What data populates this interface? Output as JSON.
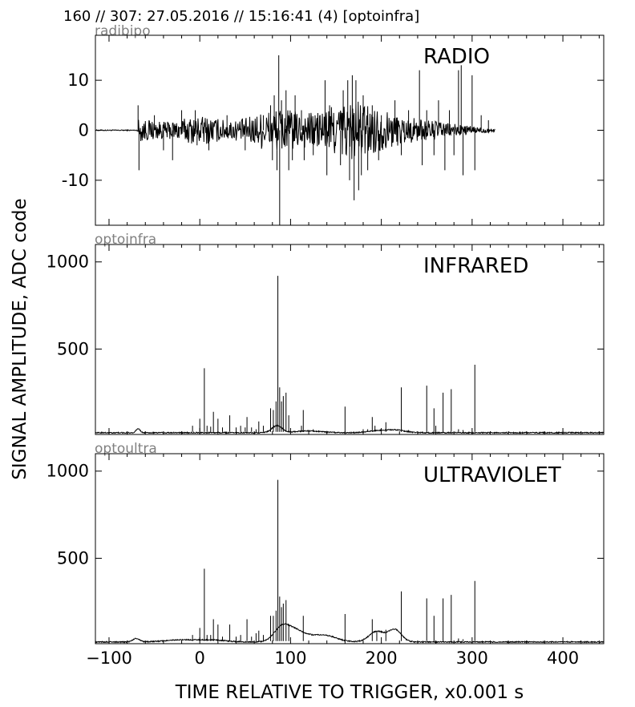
{
  "header": {
    "title": "160 // 307:   27.05.2016 // 15:16:41 (4)  [optoinfra]"
  },
  "chart_data": {
    "type": "line",
    "xlabel": "TIME RELATIVE TO TRIGGER,   x0.001 s",
    "ylabel": "SIGNAL AMPLITUDE,  ADC code",
    "xlim": [
      -115,
      445
    ],
    "xticks": [
      -100,
      0,
      100,
      200,
      300,
      400
    ],
    "xtick_labels": [
      "−100",
      "0",
      "100",
      "200",
      "300",
      "400"
    ],
    "grid": false,
    "line_color": "#000000",
    "panels": [
      {
        "id": "radio",
        "source": "radibipo",
        "label": "RADIO",
        "ylim": [
          -19,
          19
        ],
        "yticks": [
          10,
          0,
          -10
        ],
        "ytick_labels": [
          "10",
          "0",
          "-10"
        ],
        "baseline": 0,
        "signal_range": [
          -115,
          325
        ],
        "bursts": [
          {
            "x": -70,
            "width": 30,
            "amp": 2.0
          },
          {
            "x": 0,
            "width": 35,
            "amp": 2.5
          },
          {
            "x": 85,
            "width": 40,
            "amp": 4.0
          },
          {
            "x": 165,
            "width": 40,
            "amp": 5.0
          },
          {
            "x": 230,
            "width": 60,
            "amp": 2.0
          }
        ],
        "spikes": [
          [
            -68,
            5
          ],
          [
            -67,
            -8
          ],
          [
            -50,
            3
          ],
          [
            -40,
            -4
          ],
          [
            -30,
            -6
          ],
          [
            -20,
            4
          ],
          [
            -5,
            4
          ],
          [
            -3,
            -3
          ],
          [
            10,
            -4
          ],
          [
            30,
            3
          ],
          [
            50,
            -4
          ],
          [
            70,
            3
          ],
          [
            78,
            5
          ],
          [
            80,
            -6
          ],
          [
            82,
            7
          ],
          [
            85,
            -8
          ],
          [
            87,
            15
          ],
          [
            88,
            -19
          ],
          [
            90,
            6
          ],
          [
            95,
            8
          ],
          [
            98,
            -8
          ],
          [
            102,
            -6
          ],
          [
            105,
            7
          ],
          [
            112,
            4
          ],
          [
            115,
            -6
          ],
          [
            125,
            -5
          ],
          [
            138,
            10
          ],
          [
            140,
            -9
          ],
          [
            143,
            5
          ],
          [
            155,
            -7
          ],
          [
            158,
            8
          ],
          [
            163,
            10
          ],
          [
            165,
            -10
          ],
          [
            168,
            11
          ],
          [
            170,
            -14
          ],
          [
            172,
            10
          ],
          [
            175,
            -12
          ],
          [
            178,
            -9
          ],
          [
            180,
            7
          ],
          [
            185,
            -8
          ],
          [
            190,
            5
          ],
          [
            197,
            -6
          ],
          [
            200,
            3
          ],
          [
            215,
            6
          ],
          [
            222,
            -5
          ],
          [
            230,
            4
          ],
          [
            242,
            12
          ],
          [
            245,
            -7
          ],
          [
            250,
            4
          ],
          [
            258,
            -5
          ],
          [
            263,
            6
          ],
          [
            270,
            -8
          ],
          [
            275,
            4
          ],
          [
            280,
            -5
          ],
          [
            285,
            12
          ],
          [
            288,
            13
          ],
          [
            290,
            -9
          ],
          [
            300,
            11
          ],
          [
            303,
            -8
          ],
          [
            310,
            3
          ],
          [
            318,
            2
          ]
        ]
      },
      {
        "id": "infrared",
        "source": "optoinfra",
        "label": "INFRARED",
        "ylim": [
          10,
          1100
        ],
        "yticks": [
          500,
          1000
        ],
        "ytick_labels": [
          "500",
          "1000"
        ],
        "baseline": 20,
        "humps": [
          {
            "x": -68,
            "width": 3,
            "height": 25
          },
          {
            "x": 85,
            "width": 8,
            "height": 40
          },
          {
            "x": 120,
            "width": 20,
            "height": 10
          },
          {
            "x": 195,
            "width": 15,
            "height": 10
          },
          {
            "x": 215,
            "width": 15,
            "height": 15
          }
        ],
        "spikes": [
          [
            -8,
            60
          ],
          [
            0,
            100
          ],
          [
            5,
            390
          ],
          [
            8,
            60
          ],
          [
            12,
            55
          ],
          [
            15,
            140
          ],
          [
            20,
            100
          ],
          [
            25,
            50
          ],
          [
            33,
            120
          ],
          [
            40,
            50
          ],
          [
            45,
            60
          ],
          [
            50,
            50
          ],
          [
            52,
            110
          ],
          [
            57,
            50
          ],
          [
            62,
            40
          ],
          [
            65,
            85
          ],
          [
            70,
            60
          ],
          [
            78,
            160
          ],
          [
            81,
            150
          ],
          [
            84,
            200
          ],
          [
            86,
            920
          ],
          [
            88,
            280
          ],
          [
            90,
            200
          ],
          [
            92,
            230
          ],
          [
            95,
            250
          ],
          [
            98,
            120
          ],
          [
            112,
            60
          ],
          [
            114,
            150
          ],
          [
            125,
            40
          ],
          [
            135,
            30
          ],
          [
            160,
            170
          ],
          [
            180,
            40
          ],
          [
            185,
            40
          ],
          [
            190,
            110
          ],
          [
            193,
            60
          ],
          [
            205,
            80
          ],
          [
            222,
            280
          ],
          [
            230,
            35
          ],
          [
            250,
            290
          ],
          [
            258,
            160
          ],
          [
            260,
            60
          ],
          [
            268,
            250
          ],
          [
            277,
            270
          ],
          [
            285,
            40
          ],
          [
            290,
            35
          ],
          [
            303,
            410
          ]
        ]
      },
      {
        "id": "ultraviolet",
        "source": "optoultra",
        "label": "ULTRAVIOLET",
        "ylim": [
          10,
          1100
        ],
        "yticks": [
          500,
          1000
        ],
        "ytick_labels": [
          "500",
          "1000"
        ],
        "baseline": 20,
        "humps": [
          {
            "x": -70,
            "width": 5,
            "height": 20
          },
          {
            "x": -20,
            "width": 25,
            "height": 12
          },
          {
            "x": 15,
            "width": 20,
            "height": 10
          },
          {
            "x": 90,
            "width": 12,
            "height": 75
          },
          {
            "x": 105,
            "width": 15,
            "height": 60
          },
          {
            "x": 135,
            "width": 20,
            "height": 40
          },
          {
            "x": 195,
            "width": 12,
            "height": 60
          },
          {
            "x": 215,
            "width": 10,
            "height": 70
          }
        ],
        "spikes": [
          [
            -8,
            60
          ],
          [
            0,
            100
          ],
          [
            5,
            440
          ],
          [
            8,
            60
          ],
          [
            12,
            60
          ],
          [
            15,
            150
          ],
          [
            20,
            120
          ],
          [
            25,
            50
          ],
          [
            33,
            120
          ],
          [
            40,
            50
          ],
          [
            45,
            60
          ],
          [
            52,
            150
          ],
          [
            57,
            50
          ],
          [
            62,
            70
          ],
          [
            65,
            85
          ],
          [
            70,
            60
          ],
          [
            78,
            170
          ],
          [
            81,
            170
          ],
          [
            84,
            200
          ],
          [
            86,
            950
          ],
          [
            88,
            280
          ],
          [
            90,
            220
          ],
          [
            92,
            240
          ],
          [
            95,
            260
          ],
          [
            98,
            120
          ],
          [
            114,
            170
          ],
          [
            160,
            180
          ],
          [
            190,
            150
          ],
          [
            195,
            80
          ],
          [
            205,
            90
          ],
          [
            222,
            310
          ],
          [
            250,
            270
          ],
          [
            258,
            170
          ],
          [
            268,
            270
          ],
          [
            277,
            290
          ],
          [
            285,
            40
          ],
          [
            290,
            35
          ],
          [
            303,
            370
          ]
        ]
      }
    ]
  }
}
